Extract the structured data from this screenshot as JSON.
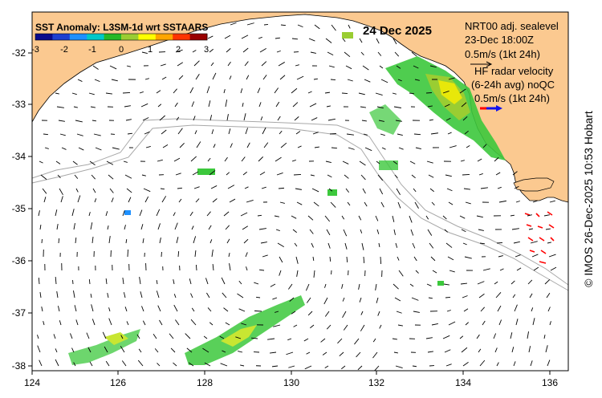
{
  "legend": {
    "title": "SST Anomaly: L3SM-1d wrt SSTAARS",
    "ticks": [
      "-3",
      "-2",
      "-1",
      "0",
      "1",
      "2",
      "3"
    ],
    "colors": [
      "#0a0a8c",
      "#1f3fd0",
      "#1e90ff",
      "#00c8c8",
      "#26b826",
      "#9acd32",
      "#ffff00",
      "#ffa500",
      "#ff3300",
      "#990000"
    ]
  },
  "date": "24 Dec 2025",
  "model_info": {
    "line1": "NRT00 adj. sealevel",
    "line2": "23-Dec 18:00Z",
    "line3": "0.5m/s (1kt 24h)"
  },
  "radar_info": {
    "line1": "HF radar velocity",
    "line2": "(6-24h avg) noQC",
    "line3": "0.5m/s (1kt 24h)"
  },
  "credit": "© IMOS 26-Dec-2025 10:53 Hobart",
  "axes": {
    "lon_ticks": [
      "124",
      "126",
      "128",
      "130",
      "132",
      "134",
      "136"
    ],
    "lat_ticks": [
      "-32",
      "-33",
      "-34",
      "-35",
      "-36",
      "-37",
      "-38"
    ]
  },
  "colors": {
    "land": "#fbc990",
    "sea": "#ffffff",
    "depth_contour": "#a8a8a8",
    "arrow": "#000000",
    "radar_arrow": "#ff0000",
    "scale_radar_arrow": "#1010ee"
  }
}
